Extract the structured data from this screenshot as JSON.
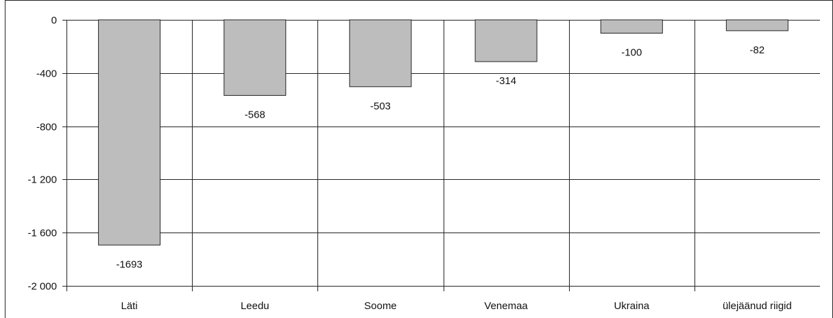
{
  "chart_data": {
    "type": "bar",
    "categories": [
      "Läti",
      "Leedu",
      "Soome",
      "Venemaa",
      "Ukraina",
      "ülejäänud riigid"
    ],
    "values": [
      -1693,
      -568,
      -503,
      -314,
      -100,
      -82
    ],
    "data_labels": [
      "-1693",
      "-568",
      "-503",
      "-314",
      "-100",
      "-82"
    ],
    "ylim": [
      -2000,
      0
    ],
    "yticks": [
      0,
      -400,
      -800,
      -1200,
      -1600,
      -2000
    ],
    "ytick_labels": [
      "0",
      "-400",
      "-800",
      "-1 200",
      "-1 600",
      "-2 000"
    ],
    "grid": true,
    "legend": "none",
    "colors": {
      "bar_fill": "#bdbdbd",
      "bar_stroke": "#222222",
      "grid": "#222222",
      "frame": "#222222"
    }
  }
}
